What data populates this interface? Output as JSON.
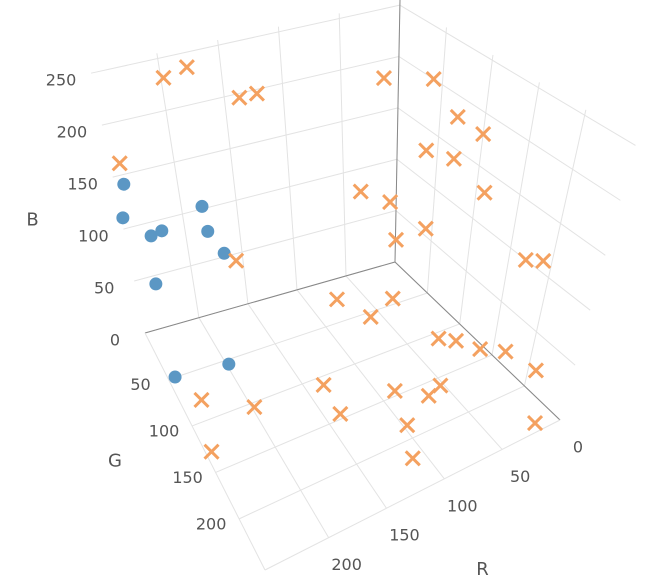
{
  "chart_data": {
    "type": "scatter3d",
    "xlabel": "R",
    "ylabel": "G",
    "zlabel": "B",
    "xlim": [
      0,
      255
    ],
    "ylim": [
      0,
      255
    ],
    "zlim": [
      0,
      255
    ],
    "xticks": [
      0,
      50,
      100,
      150,
      200
    ],
    "yticks": [
      50,
      100,
      150,
      200
    ],
    "zticks": [
      0,
      50,
      100,
      150,
      200,
      250
    ],
    "grid": true,
    "series": [
      {
        "color": "#5b97c4",
        "marker": "circle",
        "x": [
          250,
          255,
          240,
          230,
          245,
          190,
          190,
          180,
          200,
          250
        ],
        "y": [
          10,
          5,
          25,
          25,
          30,
          20,
          25,
          30,
          60,
          55
        ],
        "z": [
          150,
          115,
          110,
          112,
          70,
          120,
          100,
          80,
          5,
          5
        ]
      },
      {
        "color": "#f4a160",
        "marker": "x",
        "x": [
          200,
          180,
          140,
          125,
          250,
          20,
          0,
          0,
          0,
          10,
          0,
          0,
          60,
          40,
          20,
          40,
          170,
          0,
          0,
          60,
          100,
          80,
          40,
          30,
          20,
          10,
          0,
          60,
          70,
          90,
          140,
          140,
          100,
          110,
          20,
          240,
          200,
          250
        ],
        "y": [
          5,
          5,
          5,
          5,
          10,
          10,
          40,
          70,
          100,
          50,
          70,
          110,
          40,
          50,
          70,
          60,
          30,
          170,
          190,
          90,
          70,
          90,
          130,
          140,
          160,
          180,
          210,
          170,
          170,
          150,
          120,
          150,
          190,
          220,
          250,
          90,
          110,
          130
        ],
        "z": [
          235,
          240,
          200,
          200,
          170,
          190,
          200,
          180,
          180,
          140,
          140,
          130,
          110,
          100,
          80,
          70,
          70,
          100,
          110,
          40,
          40,
          30,
          20,
          20,
          20,
          25,
          20,
          10,
          5,
          5,
          10,
          5,
          5,
          0,
          5,
          10,
          5,
          0
        ]
      }
    ]
  }
}
